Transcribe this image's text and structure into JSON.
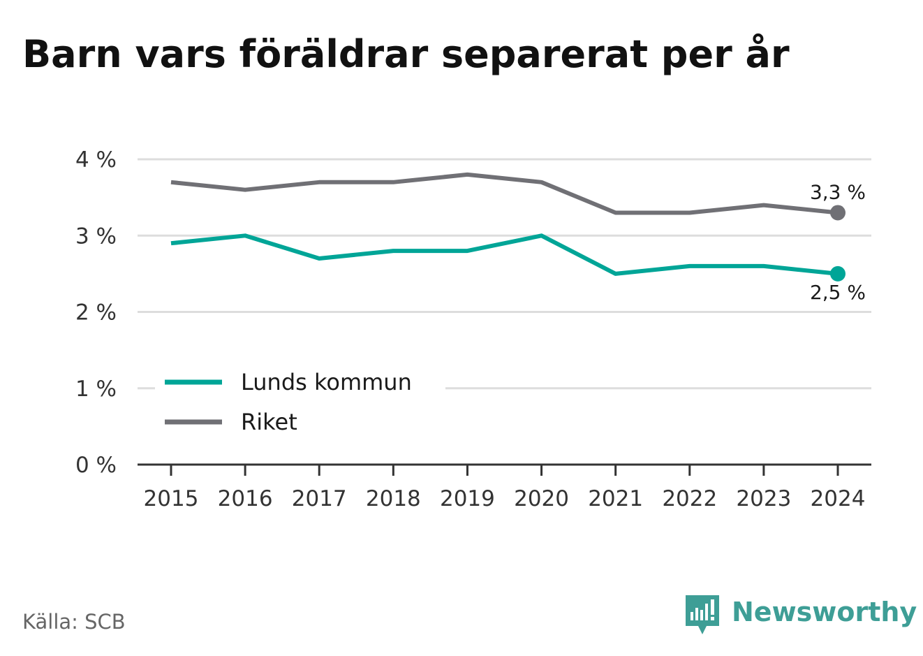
{
  "title": "Barn vars föräldrar separerat per år",
  "source": "Källa: SCB",
  "brand": {
    "name": "Newsworthy",
    "color": "#3e9e96"
  },
  "chart_data": {
    "type": "line",
    "title": "Barn vars föräldrar separerat per år",
    "x": [
      "2015",
      "2016",
      "2017",
      "2018",
      "2019",
      "2020",
      "2021",
      "2022",
      "2023",
      "2024"
    ],
    "ylim": [
      0,
      4
    ],
    "yticks": [
      0,
      1,
      2,
      3,
      4
    ],
    "ytick_labels": [
      "0 %",
      "1 %",
      "2 %",
      "3 %",
      "4 %"
    ],
    "grid": true,
    "legend_position": "bottom-left",
    "series": [
      {
        "name": "Lunds kommun",
        "color": "#00a597",
        "values": [
          2.9,
          3.0,
          2.7,
          2.8,
          2.8,
          3.0,
          2.5,
          2.6,
          2.6,
          2.5
        ],
        "end_label": "2,5 %"
      },
      {
        "name": "Riket",
        "color": "#707075",
        "values": [
          3.7,
          3.6,
          3.7,
          3.7,
          3.8,
          3.7,
          3.3,
          3.3,
          3.4,
          3.3
        ],
        "end_label": "3,3 %"
      }
    ]
  }
}
